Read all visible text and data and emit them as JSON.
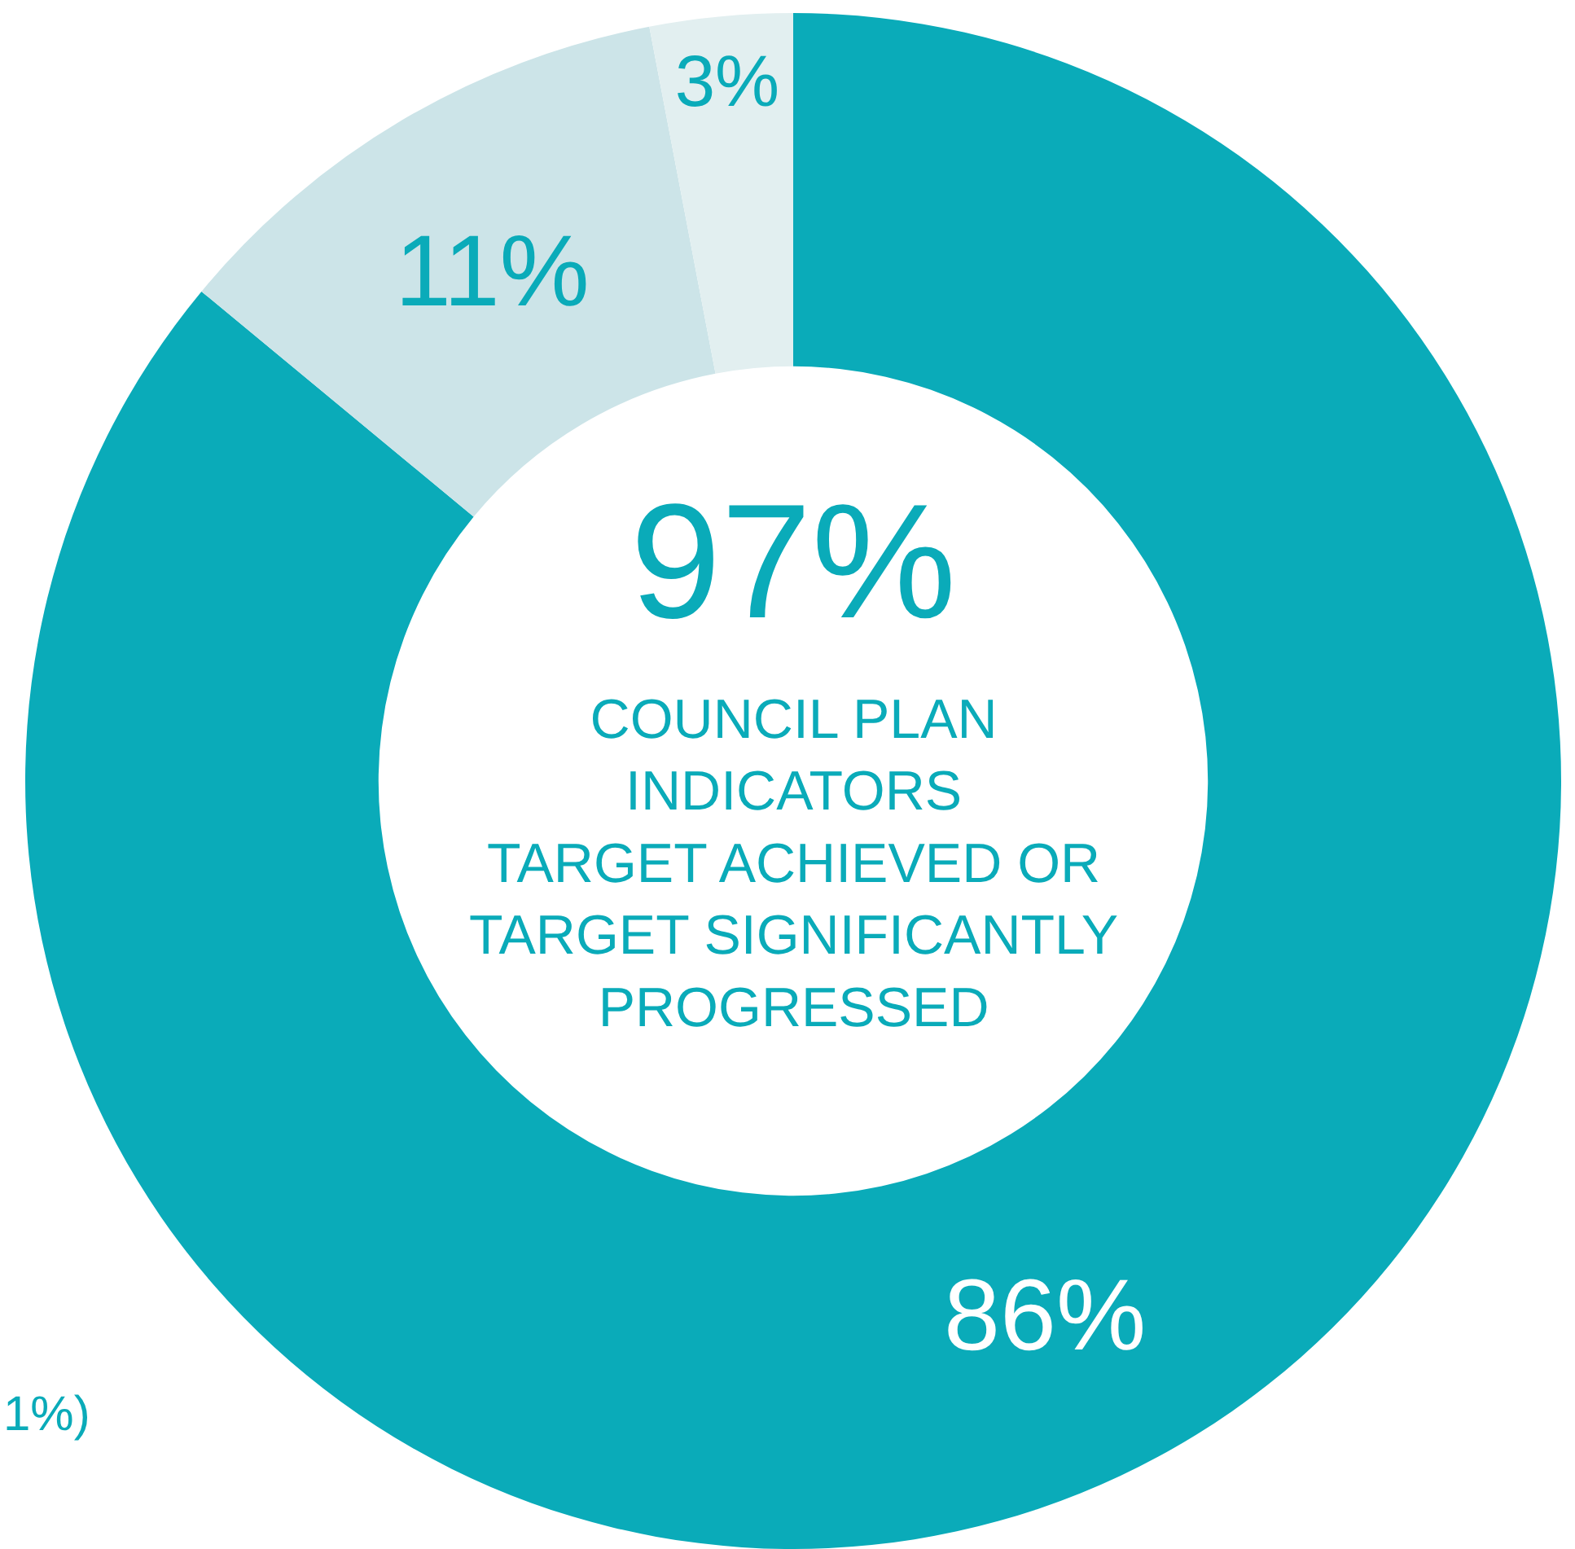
{
  "chart_data": {
    "type": "donut",
    "categories": [
      null,
      null,
      null
    ],
    "values": [
      86,
      11,
      3
    ],
    "colors": [
      "#0aabb9",
      "#cce4e8",
      "#e2eff0"
    ],
    "value_labels": [
      "86%",
      "11%",
      "3%"
    ],
    "annotations": [
      "97%",
      "COUNCIL PLAN\nINDICATORS\nTARGET ACHIEVED OR\nTARGET SIGNIFICANTLY\nPROGRESSED",
      "1%)"
    ],
    "legend": false
  }
}
